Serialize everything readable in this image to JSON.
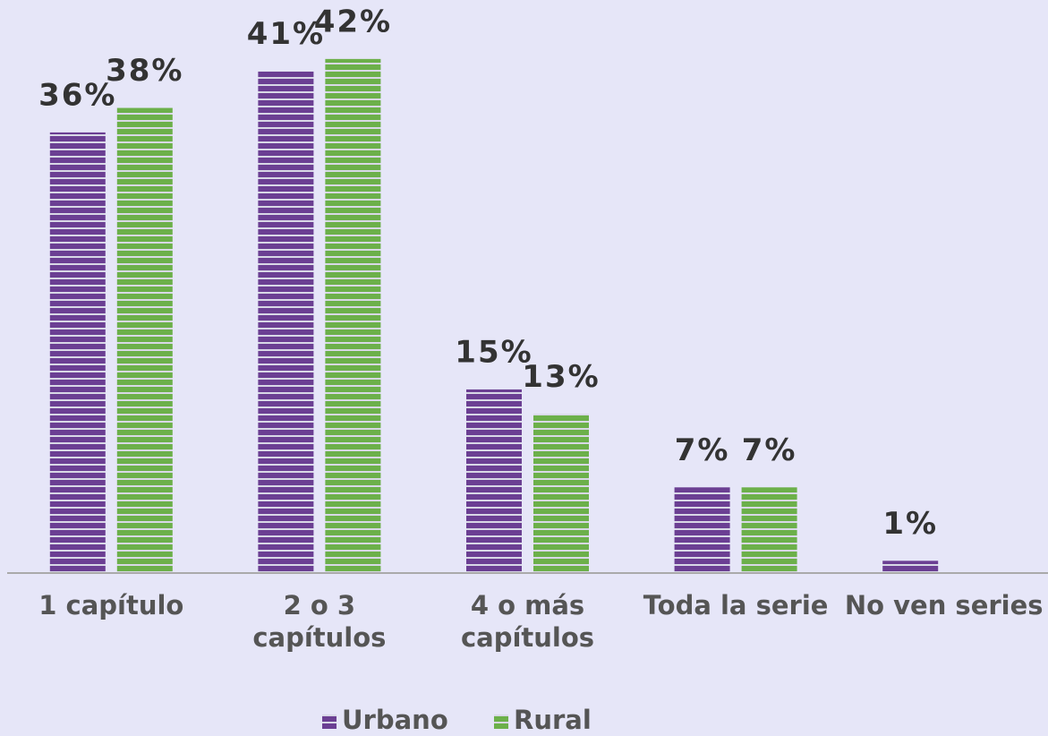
{
  "chart_data": {
    "type": "bar",
    "categories": [
      "1 capítulo",
      "2 o 3 capítulos",
      "4 o más capítulos",
      "Toda la serie",
      "No ven series"
    ],
    "series": [
      {
        "name": "Urbano",
        "color": "#6b3f93",
        "values": [
          36,
          41,
          15,
          7,
          1
        ],
        "value_labels": [
          "36%",
          "41%",
          "15%",
          "7%",
          "1%"
        ]
      },
      {
        "name": "Rural",
        "color": "#6cb04a",
        "values": [
          38,
          42,
          13,
          7,
          null
        ],
        "value_labels": [
          "38%",
          "42%",
          "13%",
          "7%",
          null
        ]
      }
    ],
    "ylim": [
      0,
      47
    ],
    "legend": "bottom"
  }
}
